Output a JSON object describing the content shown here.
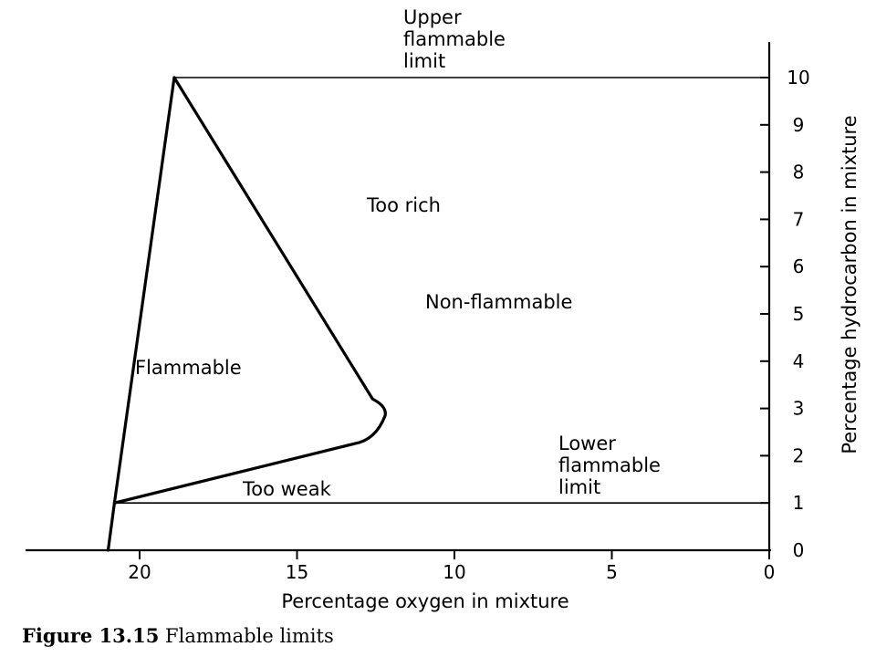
{
  "chart_data": {
    "type": "line",
    "xlabel": "Percentage oxygen in mixture",
    "ylabel": "Percentage hydrocarbon in mixture",
    "xlim": [
      0,
      23.5
    ],
    "ylim": [
      0,
      10
    ],
    "x_reversed": true,
    "y_axis_side": "right",
    "x_ticks": [
      20,
      15,
      10,
      5,
      0
    ],
    "y_ticks": [
      0,
      1,
      2,
      3,
      4,
      5,
      6,
      7,
      8,
      9,
      10
    ],
    "reference_lines": [
      {
        "name": "upper_limit",
        "y": 10,
        "x_from": 18.9,
        "x_to": 0
      },
      {
        "name": "lower_limit",
        "y": 1,
        "x_from": 20.8,
        "x_to": 0
      }
    ],
    "series": [
      {
        "points": [
          {
            "x": 21,
            "y": 0
          },
          {
            "x": 20.8,
            "y": 1
          },
          {
            "x": 18.9,
            "y": 10
          }
        ]
      },
      {
        "points": [
          {
            "x": 18.9,
            "y": 10
          },
          {
            "x": 12.6,
            "y": 3.2
          },
          {
            "x": 12.2,
            "y": 2.85
          },
          {
            "x": 12.5,
            "y": 2.4
          },
          {
            "x": 13.2,
            "y": 2.25
          },
          {
            "x": 20.8,
            "y": 1
          }
        ]
      }
    ],
    "annotations": [
      {
        "key": "upper",
        "lines": [
          "Upper",
          "flammable",
          "limit"
        ]
      },
      {
        "key": "too_rich",
        "lines": [
          "Too rich"
        ]
      },
      {
        "key": "non_flammable",
        "lines": [
          "Non-flammable"
        ]
      },
      {
        "key": "flammable",
        "lines": [
          "Flammable"
        ]
      },
      {
        "key": "too_weak",
        "lines": [
          "Too weak"
        ]
      },
      {
        "key": "lower",
        "lines": [
          "Lower",
          "flammable",
          "limit"
        ]
      }
    ]
  },
  "caption": {
    "number": "Figure 13.15",
    "text": "Flammable limits"
  }
}
